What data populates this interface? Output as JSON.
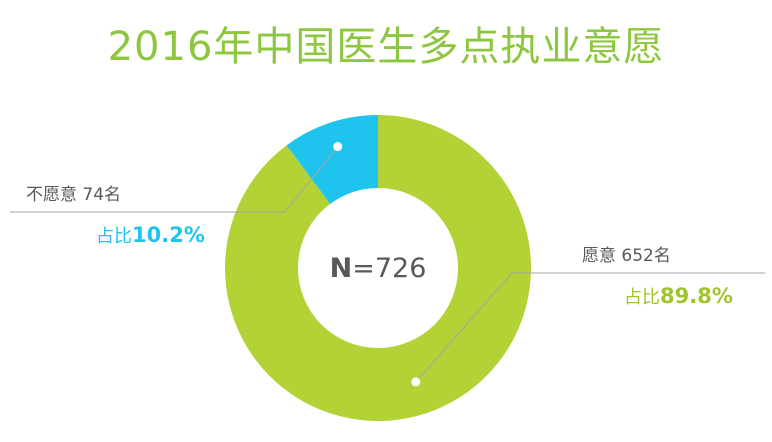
{
  "title": "2016年中国医生多点执业意愿",
  "chart_data": {
    "type": "pie",
    "style": "donut",
    "center_label": {
      "prefix": "N",
      "text": "=726"
    },
    "slices": [
      {
        "name": "愿意",
        "count_label": "652名",
        "value": 652,
        "percent": 89.8,
        "percent_prefix": "占比",
        "percent_label": "89.8%",
        "color": "#b2d235"
      },
      {
        "name": "不愿意",
        "count_label": "74名",
        "value": 74,
        "percent": 10.2,
        "percent_prefix": "占比",
        "percent_label": "10.2%",
        "color": "#1fc4ee"
      }
    ]
  },
  "colors": {
    "title": "#8dc63f",
    "leader_line": "#a6a6a6",
    "label_text": "#595959",
    "center_text": "#595959"
  }
}
